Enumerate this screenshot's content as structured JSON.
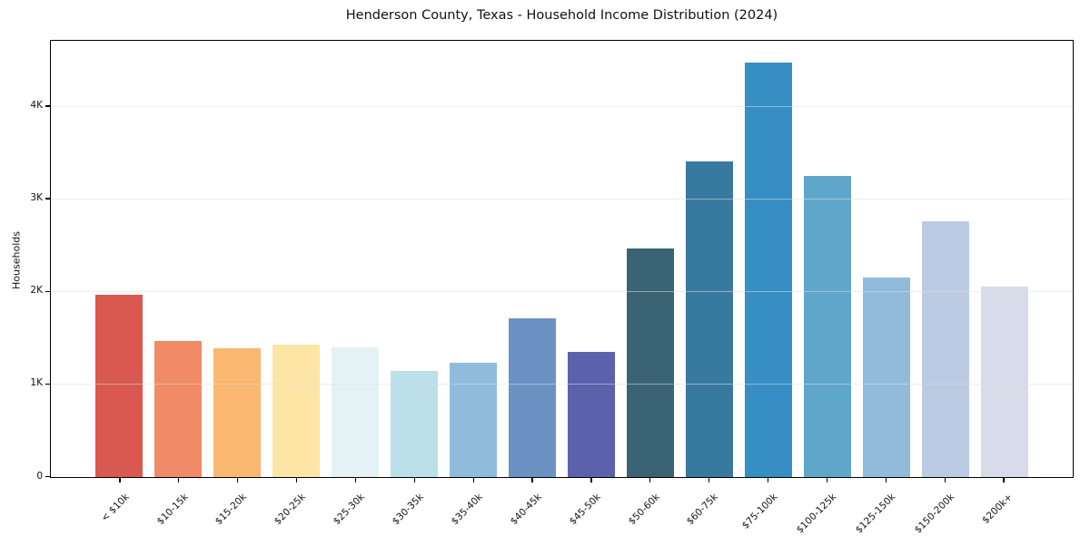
{
  "chart_data": {
    "type": "bar",
    "title": "Henderson County, Texas - Household Income Distribution (2024)",
    "xlabel": "",
    "ylabel": "Households",
    "ylim": [
      0,
      4700
    ],
    "grid": "horizontal",
    "grid_above_bars": true,
    "legend_position": "none",
    "yticks": [
      {
        "value": 0,
        "label": "0"
      },
      {
        "value": 1000,
        "label": "1K"
      },
      {
        "value": 2000,
        "label": "2K"
      },
      {
        "value": 3000,
        "label": "3K"
      },
      {
        "value": 4000,
        "label": "4K"
      }
    ],
    "categories": [
      "< $10k",
      "$10-15k",
      "$15-20k",
      "$20-25k",
      "$25-30k",
      "$30-35k",
      "$35-40k",
      "$40-45k",
      "$45-50k",
      "$50-60k",
      "$60-75k",
      "$75-100k",
      "$100-125k",
      "$125-150k",
      "$150-200k",
      "$200k+"
    ],
    "values": [
      1960,
      1465,
      1385,
      1425,
      1400,
      1140,
      1230,
      1715,
      1350,
      2465,
      3400,
      4470,
      3245,
      2145,
      2755,
      2050
    ],
    "bar_colors": [
      "#d95850",
      "#f18b67",
      "#fab871",
      "#fde5a5",
      "#e4f2f5",
      "#bce0ea",
      "#90bcdc",
      "#6c92c4",
      "#5c61ab",
      "#3a6374",
      "#38799f",
      "#368ec4",
      "#5fa6cb",
      "#92badb",
      "#bccbe4",
      "#d8dbea"
    ],
    "axis_color": "#000000",
    "grid_color": "#dedede",
    "background_color": "#ffffff"
  }
}
